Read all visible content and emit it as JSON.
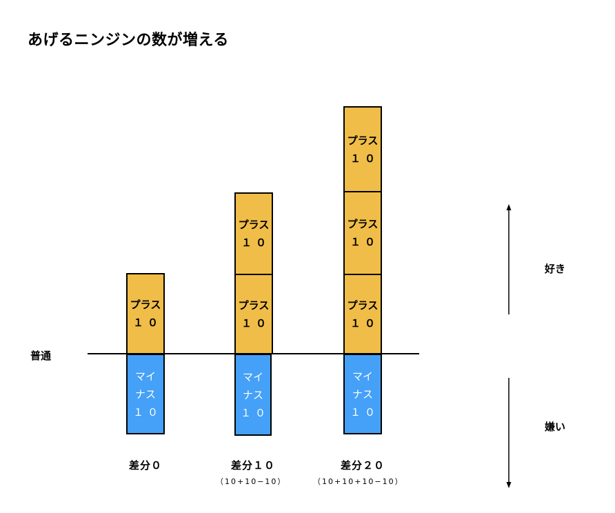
{
  "title": "あげるニンジンの数が増える",
  "baseline_label": "普通",
  "like_label": "好き",
  "dislike_label": "嫌い",
  "plus_label": "プラス",
  "plus_value": "１０",
  "minus_label_line1": "マイ",
  "minus_label_line2": "ナス",
  "minus_value": "１０",
  "columns": [
    {
      "diff": "差分０",
      "formula": ""
    },
    {
      "diff": "差分１０",
      "formula": "（10+10−10）"
    },
    {
      "diff": "差分２０",
      "formula": "（10+10+10−10）"
    }
  ]
}
